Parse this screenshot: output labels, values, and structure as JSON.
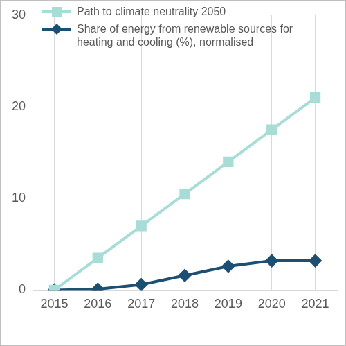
{
  "chart_data": {
    "type": "line",
    "categories": [
      "2015",
      "2016",
      "2017",
      "2018",
      "2019",
      "2020",
      "2021"
    ],
    "series": [
      {
        "name": "Path to climate neutrality 2050",
        "color": "#a8dcd6",
        "marker": "square",
        "values": [
          0,
          3.5,
          7,
          10.5,
          14,
          17.5,
          21
        ]
      },
      {
        "name": "Share of energy from renewable sources for heating and cooling (%), normalised",
        "color": "#1d4f72",
        "marker": "diamond",
        "values": [
          0,
          0.1,
          0.6,
          1.6,
          2.6,
          3.2,
          3.2
        ]
      }
    ],
    "ylim": [
      0,
      30
    ],
    "yticks": [
      0,
      10,
      20,
      30
    ],
    "grid": true,
    "legend": "upper left"
  }
}
